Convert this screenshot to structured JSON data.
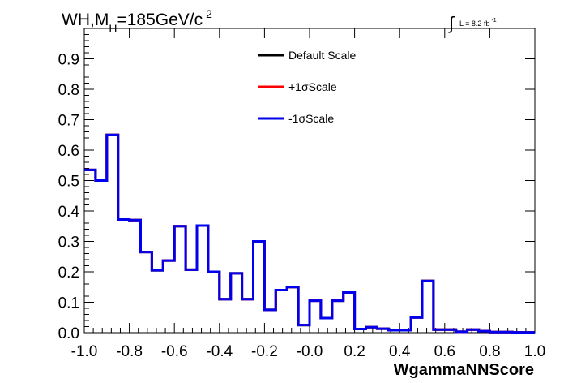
{
  "chart_data": {
    "type": "line",
    "title_main": "WH,M",
    "title_sub": "H",
    "title_rest": "=185GeV/c",
    "title_sup": "2",
    "lumi_main": "L = 8.2 fb",
    "lumi_sup": "-1",
    "lumi_symbol": "∫",
    "xlabel": "WgammaNNScore",
    "ylabel": "",
    "xlim": [
      -1.0,
      1.0
    ],
    "ylim": [
      0.0,
      1.0
    ],
    "x_ticks": [
      "-1.0",
      "-0.8",
      "-0.6",
      "-0.4",
      "-0.2",
      "-0.0",
      "0.2",
      "0.4",
      "0.6",
      "0.8",
      "1.0"
    ],
    "y_ticks": [
      "0.0",
      "0.1",
      "0.2",
      "0.3",
      "0.4",
      "0.5",
      "0.6",
      "0.7",
      "0.8",
      "0.9"
    ],
    "bin_edges": [
      -1.0,
      -0.95,
      -0.9,
      -0.85,
      -0.8,
      -0.75,
      -0.7,
      -0.65,
      -0.6,
      -0.55,
      -0.5,
      -0.45,
      -0.4,
      -0.35,
      -0.3,
      -0.25,
      -0.2,
      -0.15,
      -0.1,
      -0.05,
      0.0,
      0.05,
      0.1,
      0.15,
      0.2,
      0.25,
      0.3,
      0.35,
      0.4,
      0.45,
      0.5,
      0.55,
      0.6,
      0.65,
      0.7,
      0.75,
      0.8,
      0.85,
      0.9,
      0.95,
      1.0
    ],
    "series": [
      {
        "name": "Default Scale",
        "color": "#000000",
        "values": [
          0.535,
          0.5,
          0.65,
          0.372,
          0.37,
          0.265,
          0.205,
          0.237,
          0.35,
          0.207,
          0.352,
          0.2,
          0.11,
          0.195,
          0.11,
          0.3,
          0.075,
          0.14,
          0.15,
          0.025,
          0.105,
          0.048,
          0.105,
          0.132,
          0.012,
          0.018,
          0.013,
          0.008,
          0.008,
          0.05,
          0.17,
          0.01,
          0.01,
          0.003,
          0.01,
          0.005,
          0.002,
          0.002,
          0.001,
          0.001
        ]
      },
      {
        "name": "+1σScale",
        "color": "#ff0000",
        "values": [
          0.535,
          0.5,
          0.65,
          0.372,
          0.37,
          0.265,
          0.205,
          0.237,
          0.35,
          0.207,
          0.352,
          0.2,
          0.11,
          0.195,
          0.11,
          0.3,
          0.075,
          0.14,
          0.15,
          0.025,
          0.105,
          0.048,
          0.105,
          0.132,
          0.012,
          0.018,
          0.013,
          0.008,
          0.008,
          0.05,
          0.17,
          0.01,
          0.01,
          0.003,
          0.01,
          0.005,
          0.002,
          0.002,
          0.001,
          0.001
        ]
      },
      {
        "name": "-1σScale",
        "color": "#0000ee",
        "values": [
          0.535,
          0.5,
          0.65,
          0.372,
          0.37,
          0.265,
          0.205,
          0.237,
          0.35,
          0.207,
          0.352,
          0.2,
          0.11,
          0.195,
          0.11,
          0.3,
          0.075,
          0.14,
          0.15,
          0.025,
          0.105,
          0.048,
          0.105,
          0.132,
          0.012,
          0.018,
          0.013,
          0.008,
          0.008,
          0.05,
          0.17,
          0.01,
          0.01,
          0.003,
          0.01,
          0.005,
          0.002,
          0.002,
          0.001,
          0.001
        ]
      }
    ],
    "legend_position": "top-center",
    "grid": false
  }
}
